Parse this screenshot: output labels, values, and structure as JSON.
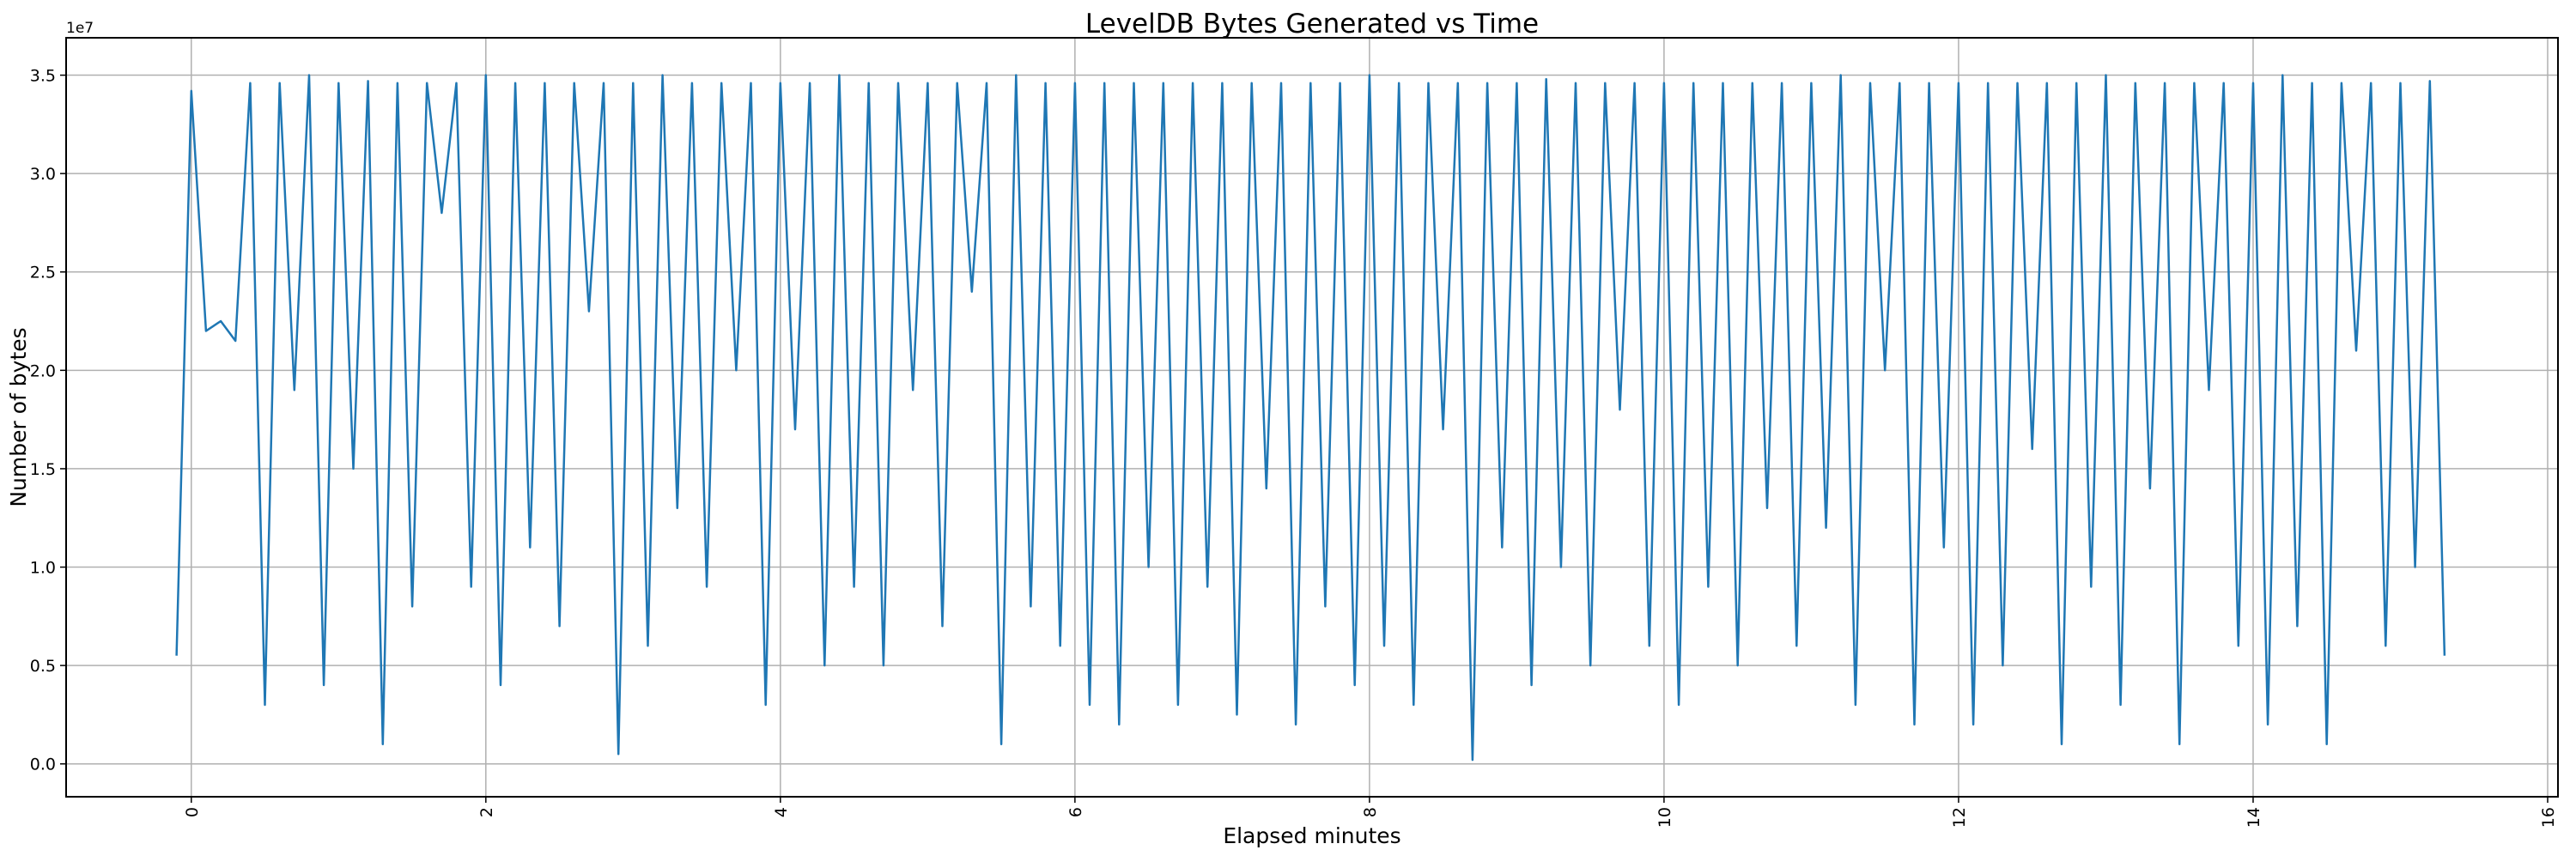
{
  "chart_data": {
    "type": "line",
    "title": "LevelDB Bytes Generated vs Time",
    "xlabel": "Elapsed minutes",
    "ylabel": "Number of bytes",
    "y_offset_label": "1e7",
    "y_scale": 10000000,
    "xlim": [
      -0.85,
      16.07
    ],
    "ylim": [
      -0.167,
      3.69
    ],
    "grid": true,
    "x_ticks": [
      0,
      2,
      4,
      6,
      8,
      10,
      12,
      14,
      16
    ],
    "x_tick_labels": [
      "0",
      "2",
      "4",
      "6",
      "8",
      "10",
      "12",
      "14",
      "16"
    ],
    "x_tick_rotation": 90,
    "y_ticks": [
      0,
      0.5,
      1.0,
      1.5,
      2.0,
      2.5,
      3.0,
      3.5
    ],
    "y_tick_labels": [
      "0.0",
      "0.5",
      "1.0",
      "1.5",
      "2.0",
      "2.5",
      "3.0",
      "3.5"
    ],
    "series": [
      {
        "name": "bytes",
        "color": "#1f77b4",
        "x": {
          "start": -0.1,
          "step": 0.1
        },
        "values_1e7": [
          0.55,
          3.42,
          2.2,
          2.25,
          2.15,
          3.46,
          0.3,
          3.46,
          1.9,
          3.5,
          0.4,
          3.46,
          1.5,
          3.47,
          0.1,
          3.46,
          0.8,
          3.46,
          2.8,
          3.46,
          0.9,
          3.5,
          0.4,
          3.46,
          1.1,
          3.46,
          0.7,
          3.46,
          2.3,
          3.46,
          0.05,
          3.46,
          0.6,
          3.5,
          1.3,
          3.46,
          0.9,
          3.46,
          2.0,
          3.46,
          0.3,
          3.46,
          1.7,
          3.46,
          0.5,
          3.5,
          0.9,
          3.46,
          0.5,
          3.46,
          1.9,
          3.46,
          0.7,
          3.46,
          2.4,
          3.46,
          0.1,
          3.5,
          0.8,
          3.46,
          0.6,
          3.46,
          0.3,
          3.46,
          0.2,
          3.46,
          1.0,
          3.46,
          0.3,
          3.46,
          0.9,
          3.46,
          0.25,
          3.46,
          1.4,
          3.46,
          0.2,
          3.46,
          0.8,
          3.46,
          0.4,
          3.5,
          0.6,
          3.46,
          0.3,
          3.46,
          1.7,
          3.46,
          0.02,
          3.46,
          1.1,
          3.46,
          0.4,
          3.48,
          1.0,
          3.46,
          0.5,
          3.46,
          1.8,
          3.46,
          0.6,
          3.46,
          0.3,
          3.46,
          0.9,
          3.46,
          0.5,
          3.46,
          1.3,
          3.46,
          0.6,
          3.46,
          1.2,
          3.5,
          0.3,
          3.46,
          2.0,
          3.46,
          0.2,
          3.46,
          1.1,
          3.46,
          0.2,
          3.46,
          0.5,
          3.46,
          1.6,
          3.46,
          0.1,
          3.46,
          0.9,
          3.5,
          0.3,
          3.46,
          1.4,
          3.46,
          0.1,
          3.46,
          1.9,
          3.46,
          0.6,
          3.46,
          0.2,
          3.5,
          0.7,
          3.46,
          0.1,
          3.46,
          2.1,
          3.46,
          0.6,
          3.46,
          1.0,
          3.47,
          0.55
        ]
      }
    ]
  }
}
